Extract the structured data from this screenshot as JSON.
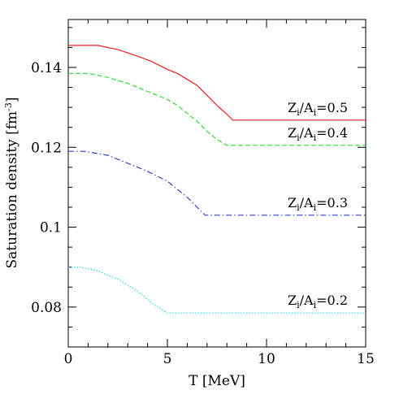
{
  "chart_data": {
    "type": "line",
    "xlabel": "T [MeV]",
    "ylabel": {
      "main": "Saturation density [fm",
      "sup": "-3",
      "close": "]"
    },
    "xlim": [
      0,
      15
    ],
    "ylim": [
      0.07,
      0.152
    ],
    "xticks": [
      {
        "value": 0,
        "label": "0"
      },
      {
        "value": 5,
        "label": "5"
      },
      {
        "value": 10,
        "label": "10"
      },
      {
        "value": 15,
        "label": "15"
      }
    ],
    "yticks": [
      {
        "value": 0.08,
        "label": "0.08"
      },
      {
        "value": 0.1,
        "label": "0.1"
      },
      {
        "value": 0.12,
        "label": "0.12"
      },
      {
        "value": 0.14,
        "label": "0.14"
      }
    ],
    "grid": false,
    "series": [
      {
        "annotation": {
          "z": "Z",
          "i1": "i",
          "slash": "/A",
          "i2": "i",
          "rest": "=0.5"
        },
        "color": "#e8201f",
        "dash": "",
        "x": [
          0,
          1.5,
          2.5,
          3.5,
          4.2,
          5.0,
          5.5,
          6.0,
          6.5,
          7.0,
          7.5,
          8.0,
          8.3,
          9.0,
          15
        ],
        "y": [
          0.1455,
          0.1455,
          0.1445,
          0.1428,
          0.1415,
          0.1395,
          0.1385,
          0.137,
          0.1355,
          0.133,
          0.1305,
          0.1283,
          0.1268,
          0.1268,
          0.1268
        ]
      },
      {
        "annotation": {
          "z": "Z",
          "i1": "i",
          "slash": "/A",
          "i2": "i",
          "rest": "=0.4"
        },
        "color": "#33dd33",
        "dash": "6,3",
        "x": [
          0,
          1.0,
          2.0,
          3.0,
          4.0,
          5.0,
          5.5,
          6.0,
          6.5,
          7.0,
          7.5,
          8.0,
          15
        ],
        "y": [
          0.1385,
          0.1385,
          0.1375,
          0.136,
          0.134,
          0.132,
          0.1305,
          0.1285,
          0.1265,
          0.124,
          0.122,
          0.1205,
          0.1205
        ]
      },
      {
        "annotation": {
          "z": "Z",
          "i1": "i",
          "slash": "/A",
          "i2": "i",
          "rest": "=0.3"
        },
        "color": "#3344cc",
        "dash": "7,3,1.5,3",
        "x": [
          0,
          0.8,
          2.0,
          3.0,
          4.0,
          5.0,
          5.5,
          6.0,
          6.5,
          6.9,
          15
        ],
        "y": [
          0.119,
          0.119,
          0.118,
          0.116,
          0.114,
          0.1115,
          0.1095,
          0.1075,
          0.105,
          0.103,
          0.103
        ]
      },
      {
        "annotation": {
          "z": "Z",
          "i1": "i",
          "slash": "/A",
          "i2": "i",
          "rest": "=0.2"
        },
        "color": "#22d8e0",
        "dash": "1.5,2",
        "x": [
          0,
          0.6,
          1.5,
          2.5,
          3.5,
          4.2,
          5.0,
          15
        ],
        "y": [
          0.09,
          0.09,
          0.089,
          0.087,
          0.084,
          0.081,
          0.0785,
          0.0785
        ]
      }
    ]
  }
}
